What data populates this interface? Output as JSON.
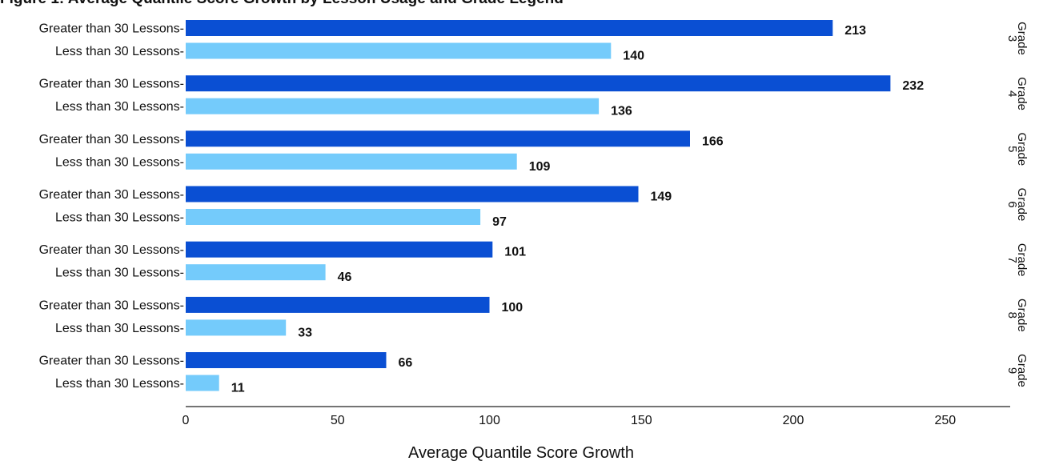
{
  "chart_data": {
    "type": "bar",
    "orientation": "horizontal",
    "title": "Figure 1: Average Quantile Score Growth by Lesson Usage and Grade Legend",
    "xlabel": "Average Quantile Score Growth",
    "xlim": [
      0,
      270
    ],
    "xticks": [
      0,
      50,
      100,
      150,
      200,
      250
    ],
    "grid": false,
    "facet_label_prefix": "Grade",
    "categories": [
      "Greater than 30 Lessons-",
      "Less than 30 Lessons-"
    ],
    "groups": [
      {
        "facet": "3",
        "values": [
          213,
          140
        ]
      },
      {
        "facet": "4",
        "values": [
          232,
          136
        ]
      },
      {
        "facet": "5",
        "values": [
          166,
          109
        ]
      },
      {
        "facet": "6",
        "values": [
          149,
          97
        ]
      },
      {
        "facet": "7",
        "values": [
          101,
          46
        ]
      },
      {
        "facet": "8",
        "values": [
          100,
          33
        ]
      },
      {
        "facet": "9",
        "values": [
          66,
          11
        ]
      }
    ],
    "colors": {
      "greater": "#0a4fd3",
      "less": "#74cbfb",
      "text": "#111111",
      "axis": "#222222"
    }
  }
}
